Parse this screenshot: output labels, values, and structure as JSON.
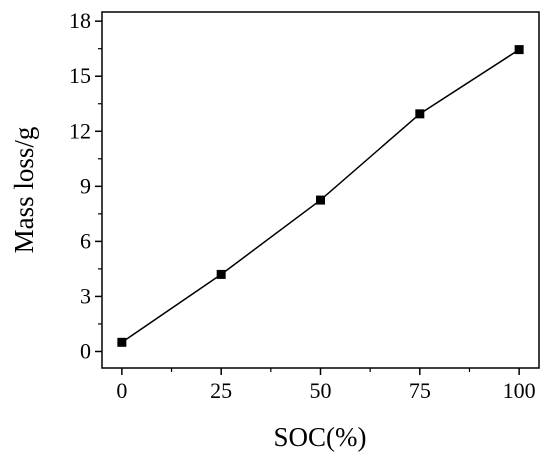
{
  "chart_data": {
    "type": "line",
    "title": "",
    "xlabel": "SOC(%)",
    "ylabel": "Mass loss/g",
    "x": [
      0,
      25,
      50,
      75,
      100
    ],
    "series": [
      {
        "values": [
          0.5,
          4.2,
          8.25,
          12.95,
          16.45
        ],
        "marker": "square",
        "color": "#000000"
      }
    ],
    "xlim": [
      -5,
      105
    ],
    "ylim": [
      -0.9,
      18.5
    ],
    "xticks": [
      0,
      25,
      50,
      75,
      100
    ],
    "yticks": [
      0,
      3,
      6,
      9,
      12,
      15,
      18
    ],
    "xtick_labels": [
      "0",
      "25",
      "50",
      "75",
      "100"
    ],
    "ytick_labels": [
      "0",
      "3",
      "6",
      "9",
      "12",
      "15",
      "18"
    ],
    "grid": false,
    "legend": "none"
  }
}
